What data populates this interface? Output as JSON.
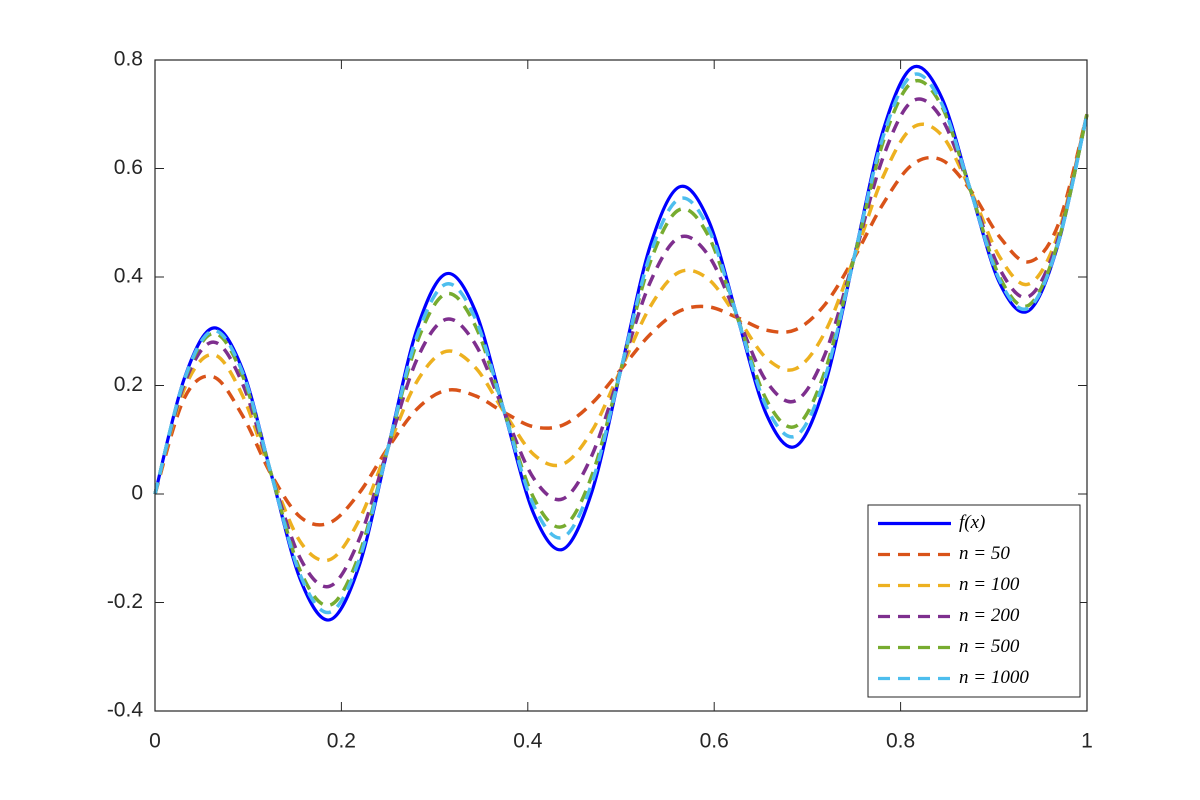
{
  "chart_data": {
    "type": "line",
    "x": [
      0,
      0.03125,
      0.0625,
      0.09375,
      0.125,
      0.15625,
      0.1875,
      0.21875,
      0.25,
      0.28125,
      0.3125,
      0.34375,
      0.375,
      0.40625,
      0.4375,
      0.46875,
      0.5,
      0.53125,
      0.5625,
      0.59375,
      0.625,
      0.65625,
      0.6875,
      0.71875,
      0.75,
      0.78125,
      0.8125,
      0.84375,
      0.875,
      0.90625,
      0.9375,
      0.96875,
      1
    ],
    "series": [
      {
        "name": "f(x)",
        "color": "#0000ff",
        "style": "solid",
        "values": [
          0,
          0.212,
          0.306,
          0.23,
          0.035,
          -0.159,
          -0.232,
          -0.134,
          0.085,
          0.305,
          0.406,
          0.337,
          0.15,
          -0.036,
          -0.102,
          0.004,
          0.23,
          0.457,
          0.566,
          0.505,
          0.325,
          0.146,
          0.088,
          0.201,
          0.435,
          0.67,
          0.786,
          0.732,
          0.56,
          0.389,
          0.338,
          0.459,
          0.7
        ]
      },
      {
        "name": "n = 50",
        "color": "#d95319",
        "style": "dashed",
        "values": [
          0,
          0.176,
          0.216,
          0.145,
          0.035,
          -0.043,
          -0.053,
          0.001,
          0.085,
          0.157,
          0.191,
          0.181,
          0.15,
          0.124,
          0.127,
          0.167,
          0.23,
          0.294,
          0.337,
          0.345,
          0.325,
          0.302,
          0.303,
          0.349,
          0.435,
          0.535,
          0.607,
          0.616,
          0.56,
          0.474,
          0.428,
          0.495,
          0.7
        ]
      },
      {
        "name": "n = 100",
        "color": "#edb120",
        "style": "dashed",
        "values": [
          0,
          0.193,
          0.257,
          0.182,
          0.035,
          -0.089,
          -0.121,
          -0.049,
          0.085,
          0.208,
          0.263,
          0.233,
          0.15,
          0.073,
          0.055,
          0.116,
          0.23,
          0.345,
          0.409,
          0.396,
          0.325,
          0.25,
          0.231,
          0.298,
          0.435,
          0.585,
          0.675,
          0.662,
          0.56,
          0.437,
          0.387,
          0.478,
          0.7
        ]
      },
      {
        "name": "n = 200",
        "color": "#7e2f8e",
        "style": "dashed",
        "values": [
          0,
          0.202,
          0.28,
          0.204,
          0.035,
          -0.12,
          -0.17,
          -0.085,
          0.085,
          0.249,
          0.322,
          0.276,
          0.15,
          0.029,
          -0.009,
          0.071,
          0.23,
          0.39,
          0.473,
          0.44,
          0.325,
          0.207,
          0.172,
          0.257,
          0.435,
          0.621,
          0.724,
          0.693,
          0.56,
          0.415,
          0.364,
          0.469,
          0.7
        ]
      },
      {
        "name": "n = 500",
        "color": "#77ac30",
        "style": "dashed",
        "values": [
          0,
          0.208,
          0.296,
          0.219,
          0.035,
          -0.143,
          -0.205,
          -0.113,
          0.085,
          0.28,
          0.369,
          0.31,
          0.15,
          -0.007,
          -0.06,
          0.034,
          0.23,
          0.427,
          0.524,
          0.476,
          0.325,
          0.173,
          0.125,
          0.226,
          0.435,
          0.649,
          0.759,
          0.716,
          0.56,
          0.4,
          0.348,
          0.463,
          0.7
        ]
      },
      {
        "name": "n = 1000",
        "color": "#4dbeee",
        "style": "dashed",
        "values": [
          0,
          0.21,
          0.301,
          0.225,
          0.035,
          -0.151,
          -0.218,
          -0.123,
          0.085,
          0.292,
          0.387,
          0.323,
          0.15,
          -0.021,
          -0.08,
          0.02,
          0.23,
          0.441,
          0.544,
          0.49,
          0.325,
          0.16,
          0.107,
          0.214,
          0.435,
          0.659,
          0.772,
          0.721,
          0.56,
          0.394,
          0.343,
          0.461,
          0.7
        ]
      }
    ],
    "xlim": [
      0,
      1
    ],
    "xticks": [
      0,
      0.2,
      0.4,
      0.6,
      0.8,
      1
    ],
    "ylim": [
      -0.4,
      0.8
    ],
    "yticks": [
      -0.4,
      -0.2,
      0,
      0.2,
      0.4,
      0.6,
      0.8
    ],
    "grid": false,
    "legend_position": "southeast"
  }
}
